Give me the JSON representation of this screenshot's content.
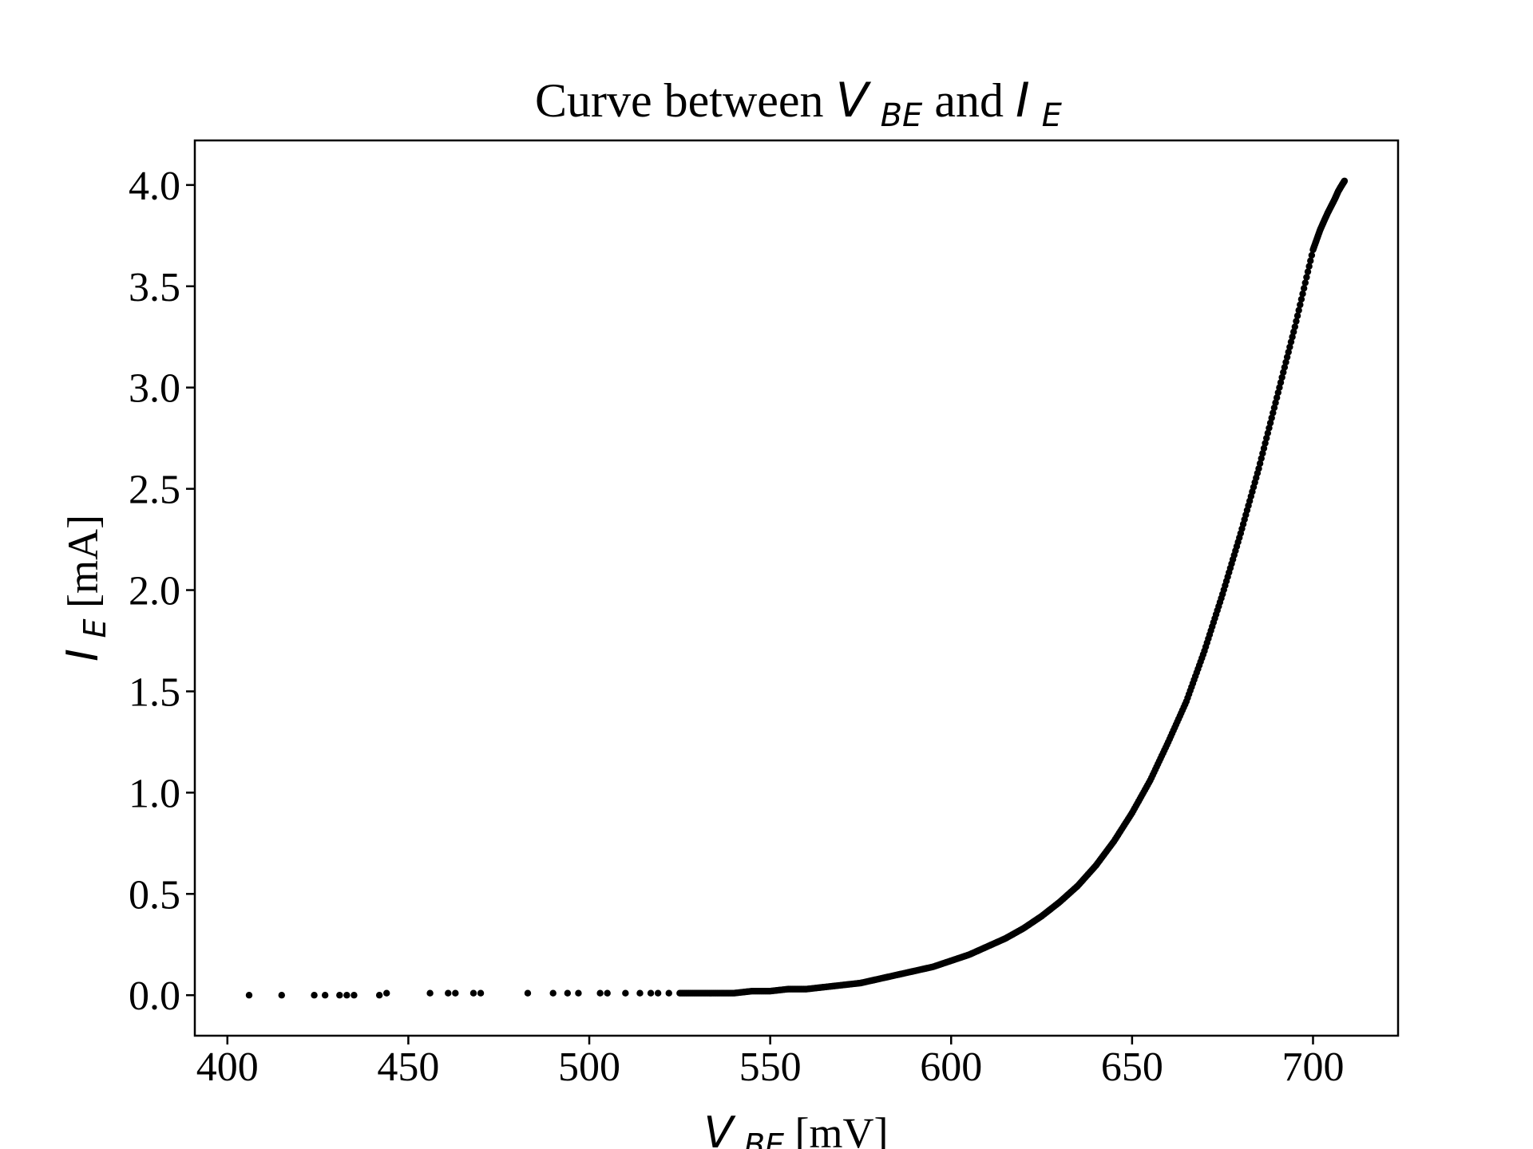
{
  "chart_data": {
    "type": "scatter",
    "title": {
      "prefix": "Curve between ",
      "var1_main": "V",
      "var1_sub": "BE",
      "middle": " and ",
      "var2_main": "I",
      "var2_sub": "E"
    },
    "xlabel": {
      "main": "V",
      "sub": "BE",
      "unit": "[mV]"
    },
    "ylabel": {
      "main": "I",
      "sub": "E",
      "unit": "[mA]"
    },
    "xlim": [
      391,
      723.5
    ],
    "ylim": [
      -0.2,
      4.22
    ],
    "x_ticks": [
      400,
      450,
      500,
      550,
      600,
      650,
      700
    ],
    "x_tick_labels": [
      "400",
      "450",
      "500",
      "550",
      "600",
      "650",
      "700"
    ],
    "y_ticks": [
      0.0,
      0.5,
      1.0,
      1.5,
      2.0,
      2.5,
      3.0,
      3.5,
      4.0
    ],
    "y_tick_labels": [
      "0.0",
      "0.5",
      "1.0",
      "1.5",
      "2.0",
      "2.5",
      "3.0",
      "3.5",
      "4.0"
    ],
    "grid": false,
    "legend": "none",
    "marker_color": "#000000",
    "series": [
      {
        "x": [
          406,
          415,
          424,
          427,
          431,
          433,
          435,
          442,
          444,
          456,
          461,
          463,
          468,
          470,
          483,
          490,
          494,
          497,
          503,
          505,
          510,
          514,
          517,
          519,
          522,
          525,
          530,
          535,
          540,
          545,
          550,
          555,
          560,
          565,
          570,
          575,
          580,
          585,
          590,
          595,
          600,
          605,
          610,
          615,
          620,
          625,
          630,
          635,
          640,
          645,
          650,
          655,
          660,
          665,
          670,
          675,
          680,
          685,
          690,
          695,
          700,
          702,
          704,
          706,
          707,
          708,
          708.7
        ],
        "y": [
          0.0,
          0.0,
          0.0,
          0.0,
          0.0,
          0.0,
          0.0,
          0.0,
          0.01,
          0.01,
          0.01,
          0.01,
          0.01,
          0.01,
          0.01,
          0.01,
          0.01,
          0.01,
          0.01,
          0.01,
          0.01,
          0.01,
          0.01,
          0.01,
          0.01,
          0.01,
          0.01,
          0.01,
          0.01,
          0.02,
          0.02,
          0.03,
          0.03,
          0.04,
          0.05,
          0.06,
          0.08,
          0.1,
          0.12,
          0.14,
          0.17,
          0.2,
          0.24,
          0.28,
          0.33,
          0.39,
          0.46,
          0.54,
          0.64,
          0.76,
          0.9,
          1.06,
          1.25,
          1.45,
          1.7,
          1.98,
          2.28,
          2.6,
          2.95,
          3.3,
          3.68,
          3.78,
          3.86,
          3.93,
          3.97,
          4.0,
          4.02
        ]
      }
    ]
  }
}
